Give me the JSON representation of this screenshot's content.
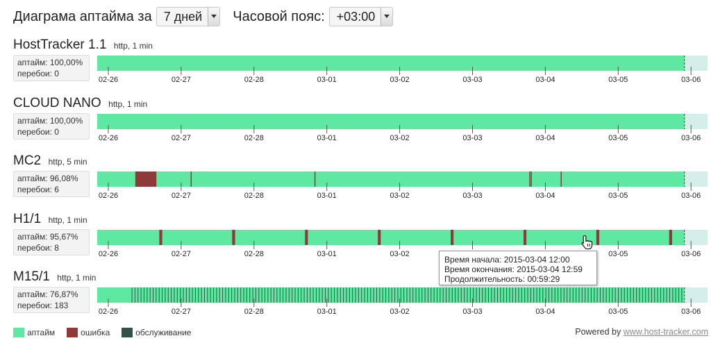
{
  "header": {
    "prefix": "Диаграма аптайма за",
    "period_value": "7 дней",
    "timezone_label": "Часовой пояс:",
    "timezone_value": "+03:00"
  },
  "colors": {
    "uptime": "#5ee8a1",
    "error": "#8f3a3a",
    "maintenance": "#34504a",
    "future": "#d5eee9",
    "now_marker": "#444444"
  },
  "ticks": [
    "02-26",
    "02-27",
    "02-28",
    "03-01",
    "03-02",
    "03-03",
    "03-04",
    "03-05",
    "03-06"
  ],
  "range": {
    "start_day": "02-26",
    "now_day_fraction": 7.91
  },
  "monitors": [
    {
      "name": "HostTracker 1.1",
      "type": "http, 1 min",
      "uptime_text": "аптайм: 100,00%",
      "outages_text": "перебои: 0",
      "errors": [],
      "error_lines": []
    },
    {
      "name": "CLOUD NANO",
      "type": "http, 1 min",
      "uptime_text": "аптайм: 100,00%",
      "outages_text": "перебои: 0",
      "errors": [],
      "error_lines": []
    },
    {
      "name": "MC2",
      "type": "http, 5 min",
      "uptime_text": "аптайм: 96,08%",
      "outages_text": "перебои: 6",
      "errors": [
        [
          0.37,
          0.66
        ]
      ],
      "error_lines": [
        1.13,
        2.83,
        5.78,
        5.8,
        6.21
      ]
    },
    {
      "name": "H1/1",
      "type": "http, 1 min",
      "uptime_text": "аптайм: 95,67%",
      "outages_text": "перебои: 8",
      "errors": [
        [
          0.7,
          0.74
        ],
        [
          1.7,
          1.74
        ],
        [
          2.7,
          2.74
        ],
        [
          3.7,
          3.74
        ],
        [
          4.7,
          4.74
        ],
        [
          5.7,
          5.74
        ],
        [
          6.7,
          6.74
        ],
        [
          7.7,
          7.74
        ]
      ],
      "error_lines": []
    },
    {
      "name": "M15/1",
      "type": "http, 1 min",
      "uptime_text": "аптайм: 76,87%",
      "outages_text": "перебои: 183",
      "errors": [],
      "error_lines": [],
      "hatch": {
        "from": 0.32,
        "count": 183
      }
    }
  ],
  "tooltip": {
    "start": "Время начала: 2015-03-04 12:00",
    "end": "Время окончания: 2015-03-04 12:59",
    "duration": "Продолжительность: 00:59:29"
  },
  "legend": {
    "uptime": "аптайм",
    "error": "ошибка",
    "maintenance": "обслуживание"
  },
  "powered": {
    "prefix": "Powered by",
    "link": "www.host-tracker.com"
  }
}
